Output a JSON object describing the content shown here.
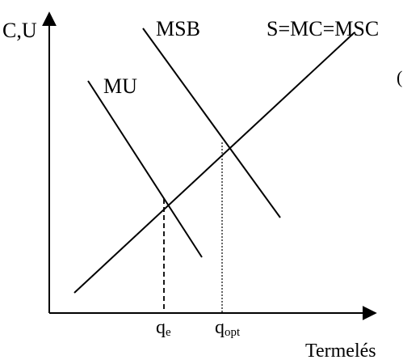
{
  "axes": {
    "y_label": "C,U",
    "x_label": "Termelés"
  },
  "curves": {
    "msb": "MSB",
    "supply": "S=MC=MSC",
    "mu": "MU"
  },
  "ticks": {
    "qe_base": "q",
    "qe_sub": "e",
    "qopt_base": "q",
    "qopt_sub": "opt"
  },
  "stray_glyph": "("
}
